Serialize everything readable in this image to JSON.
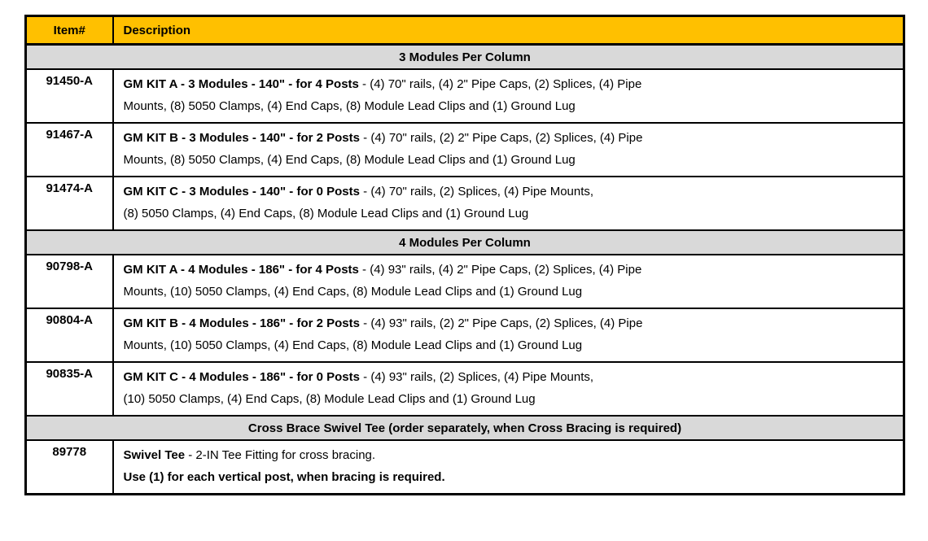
{
  "table": {
    "header": {
      "item_col": "Item#",
      "desc_col": "Description"
    },
    "colors": {
      "header_bg": "#FFC000",
      "section_bg": "#D9D9D9",
      "border": "#000000"
    },
    "sections": [
      {
        "title": "3 Modules Per Column",
        "rows": [
          {
            "item": "91450-A",
            "line1_bold": "GM KIT A - 3 Modules - 140\" - for 4 Posts",
            "line1_rest": " - (4) 70\" rails, (4) 2\" Pipe Caps, (2) Splices, (4) Pipe",
            "line2": "Mounts, (8) 5050 Clamps, (4) End Caps, (8) Module Lead Clips and (1) Ground Lug"
          },
          {
            "item": "91467-A",
            "line1_bold": "GM KIT B - 3 Modules - 140\" - for 2 Posts",
            "line1_rest": " - (4) 70\" rails, (2) 2\" Pipe Caps, (2) Splices, (4) Pipe",
            "line2": "Mounts, (8) 5050 Clamps, (4) End Caps, (8) Module Lead Clips and (1) Ground Lug"
          },
          {
            "item": "91474-A",
            "line1_bold": "GM KIT C - 3 Modules - 140\" - for 0 Posts",
            "line1_rest": " - (4) 70\" rails, (2) Splices, (4) Pipe Mounts,",
            "line2": "(8) 5050 Clamps, (4) End Caps, (8) Module Lead Clips and (1) Ground Lug"
          }
        ]
      },
      {
        "title": "4 Modules Per Column",
        "rows": [
          {
            "item": "90798-A",
            "line1_bold": "GM KIT A - 4 Modules - 186\" - for 4 Posts",
            "line1_rest": " - (4) 93\" rails, (4) 2\" Pipe Caps, (2) Splices, (4) Pipe",
            "line2": "Mounts, (10) 5050 Clamps, (4) End Caps, (8) Module Lead Clips and (1) Ground Lug"
          },
          {
            "item": "90804-A",
            "line1_bold": "GM KIT B - 4 Modules - 186\" - for 2 Posts",
            "line1_rest": " - (4) 93\" rails, (2) 2\" Pipe Caps, (2) Splices, (4) Pipe",
            "line2": "Mounts, (10) 5050 Clamps, (4) End Caps, (8) Module Lead Clips and (1) Ground Lug"
          },
          {
            "item": "90835-A",
            "line1_bold": "GM KIT C - 4 Modules - 186\" - for 0 Posts",
            "line1_rest": " - (4) 93\" rails, (2) Splices, (4) Pipe Mounts,",
            "line2": "(10) 5050 Clamps, (4) End Caps, (8) Module Lead Clips and (1) Ground Lug"
          }
        ]
      },
      {
        "title": "Cross Brace Swivel Tee (order separately, when Cross Bracing is required)",
        "rows": [
          {
            "item": "89778",
            "line1_bold": "Swivel Tee",
            "line1_rest": " - 2-IN Tee Fitting for cross bracing.",
            "line2": "Use (1) for each vertical post, when bracing is required."
          }
        ]
      }
    ]
  }
}
